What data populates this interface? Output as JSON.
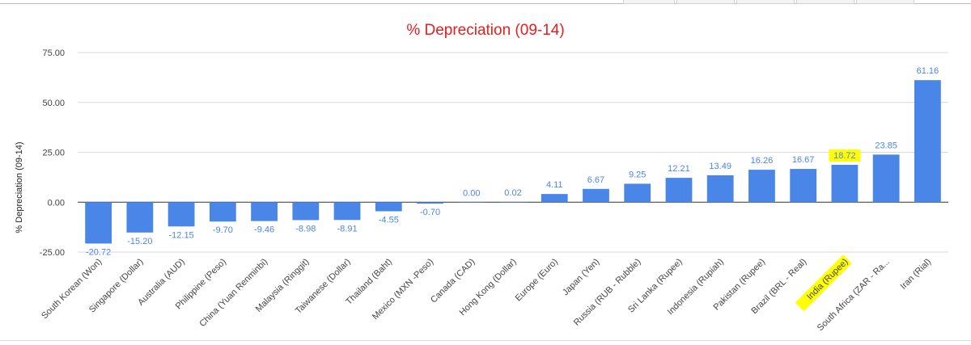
{
  "chart_data": {
    "type": "bar",
    "title": "% Depreciation (09-14)",
    "xlabel": "",
    "ylabel": "% Depreciation (09-14)",
    "ylim": [
      -25,
      75
    ],
    "yticks": [
      75,
      50,
      25,
      0,
      -25
    ],
    "ytick_labels": [
      "75.00",
      "50.00",
      "25.00",
      "0.00",
      "-25.00"
    ],
    "categories": [
      "South Korean (Won)",
      "Singapore (Dollar)",
      "Australia (AUD)",
      "Philippine (Peso)",
      "China (Yuan Renminbi)",
      "Malaysia (Ringgit)",
      "Taiwanese (Dollar)",
      "Thailand (Baht)",
      "Mexico (MXN -Peso)",
      "Canada (CAD)",
      "Hong Kong (Dollar)",
      "Europe (Euro)",
      "Japan (Yen)",
      "Russia (RUB - Rubble)",
      "Sri Lanka (Rupee)",
      "Indonesia (Rupiah)",
      "Pakistan (Rupee)",
      "Brazil (BRL - Real)",
      "India (Rupee)",
      "South Africa (ZAR - Ra...",
      "Iran (Rial)"
    ],
    "values": [
      -20.72,
      -15.2,
      -12.15,
      -9.7,
      -9.46,
      -8.98,
      -8.91,
      -4.55,
      -0.7,
      0.0,
      0.02,
      4.11,
      6.67,
      9.25,
      12.21,
      13.49,
      16.26,
      16.67,
      18.72,
      23.85,
      61.16
    ],
    "value_labels": [
      "-20.72",
      "-15.20",
      "-12.15",
      "-9.70",
      "-9.46",
      "-8.98",
      "-8.91",
      "-4.55",
      "-0.70",
      "0.00",
      "0.02",
      "4.11",
      "6.67",
      "9.25",
      "12.21",
      "13.49",
      "16.26",
      "16.67",
      "18.72",
      "23.85",
      "61.16"
    ],
    "highlighted_category": "India (Rupee)",
    "grid": true,
    "legend": "none"
  },
  "colors": {
    "bar": "#4a86e8",
    "value_label": "#4a86e8",
    "title": "#ea1c1c",
    "highlight": "#ffff00",
    "grid": "#d9d9d9"
  }
}
